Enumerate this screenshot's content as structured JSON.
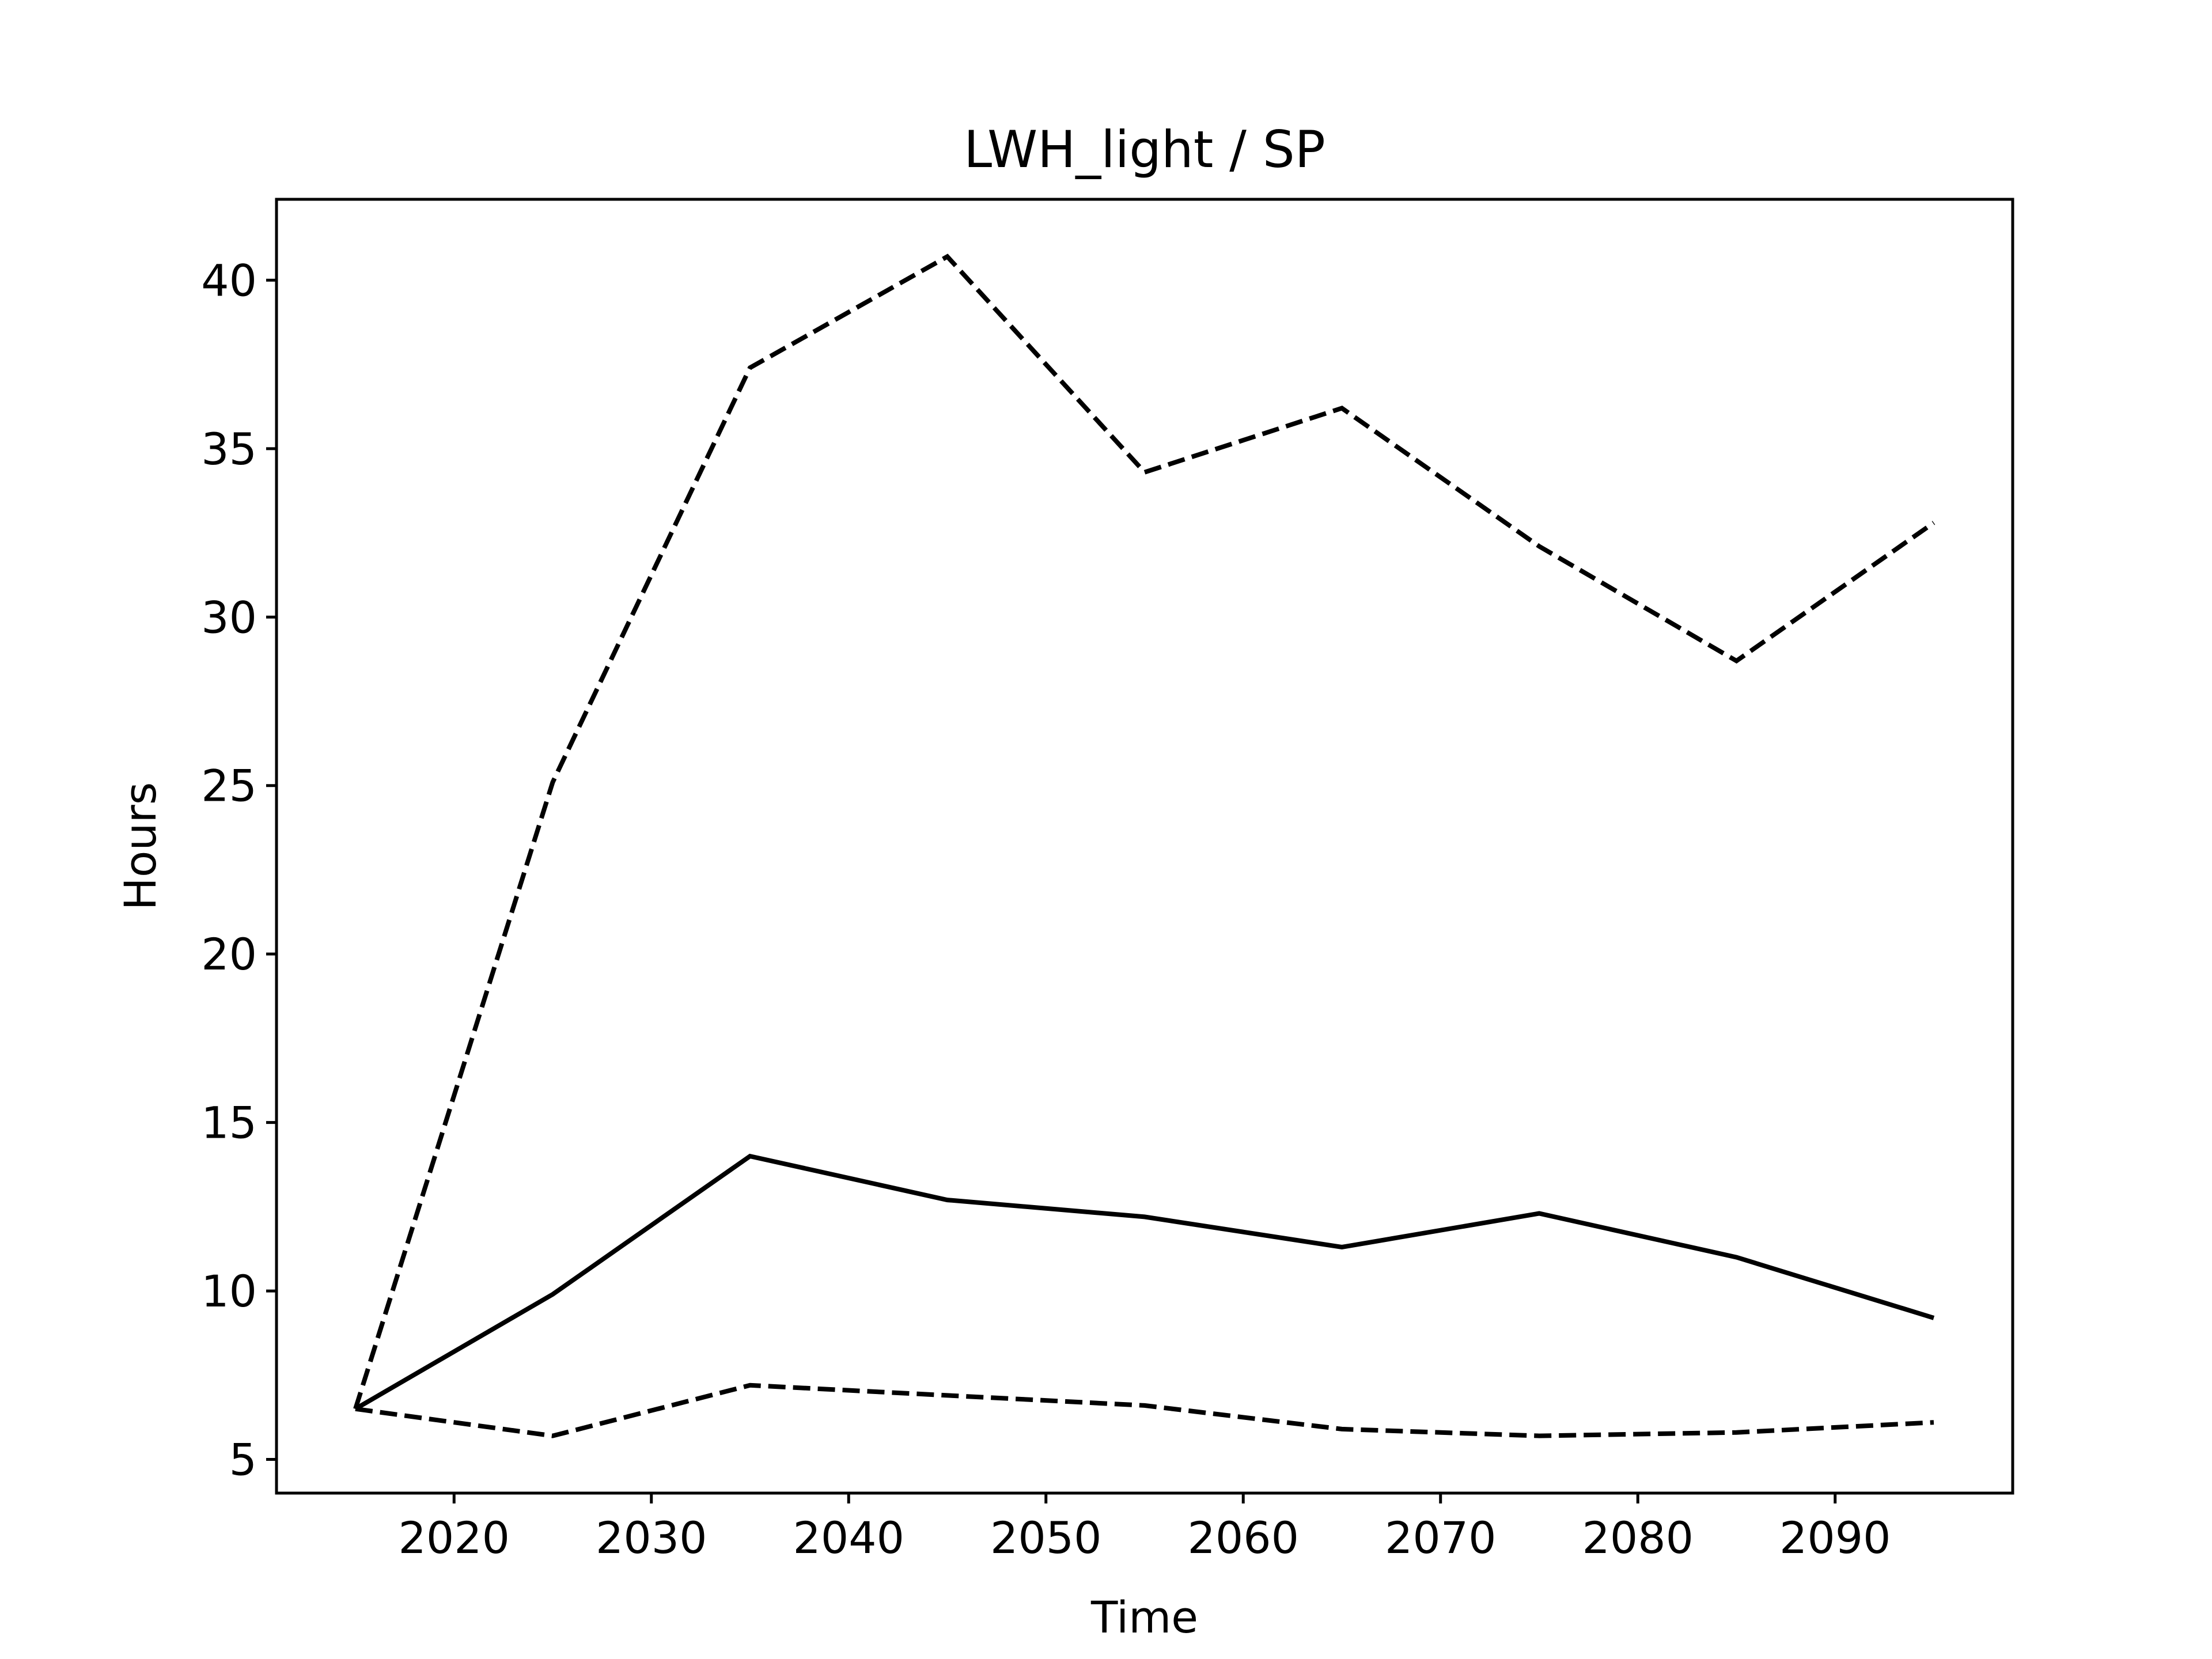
{
  "chart_data": {
    "type": "line",
    "title": "LWH_light / SP",
    "xlabel": "Time",
    "ylabel": "Hours",
    "xlim": [
      2011,
      2099
    ],
    "ylim": [
      4,
      42.4
    ],
    "xticks": [
      2020,
      2030,
      2040,
      2050,
      2060,
      2070,
      2080,
      2090
    ],
    "yticks": [
      5,
      10,
      15,
      20,
      25,
      30,
      35,
      40
    ],
    "grid": false,
    "x": [
      2015,
      2025,
      2035,
      2045,
      2055,
      2065,
      2075,
      2085,
      2095
    ],
    "series": [
      {
        "style": "dashed",
        "color": "#000000",
        "values": [
          6.5,
          25.1,
          37.4,
          40.7,
          34.3,
          36.2,
          32.1,
          28.7,
          32.8
        ]
      },
      {
        "style": "solid",
        "color": "#000000",
        "values": [
          6.5,
          9.9,
          14.0,
          12.7,
          12.2,
          11.3,
          12.3,
          11.0,
          9.2
        ]
      },
      {
        "style": "dashed",
        "color": "#000000",
        "values": [
          6.5,
          5.7,
          7.2,
          6.9,
          6.6,
          5.9,
          5.7,
          5.8,
          6.1
        ]
      }
    ]
  }
}
